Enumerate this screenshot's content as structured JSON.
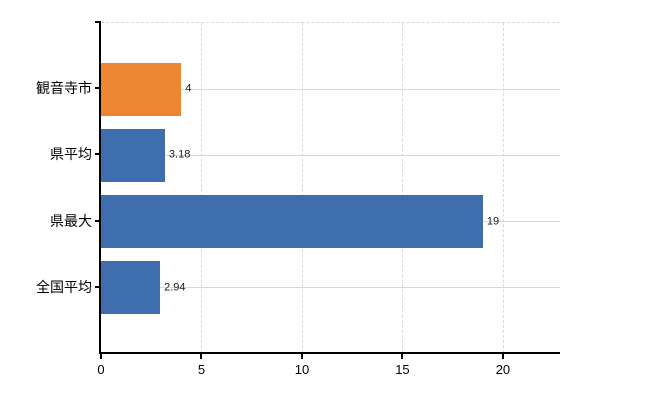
{
  "chart_data": {
    "type": "bar",
    "orientation": "horizontal",
    "title": "",
    "xlabel": "",
    "ylabel": "",
    "categories": [
      "観音寺市",
      "県平均",
      "県最大",
      "全国平均"
    ],
    "values": [
      4,
      3.18,
      19,
      2.94
    ],
    "value_labels": [
      "4",
      "3.18",
      "19",
      "2.94"
    ],
    "bar_colors": [
      "#ED8633",
      "#3E6EAE",
      "#3E6EAE",
      "#3E6EAE"
    ],
    "highlight_color": "#ED8633",
    "base_color": "#3E6EAE",
    "x_ticks": [
      "0",
      "5",
      "10",
      "15",
      "20"
    ],
    "x_tick_values": [
      0,
      5,
      10,
      15,
      20
    ],
    "xlim": [
      0,
      22.84
    ],
    "grid": {
      "vertical_style": "dashed",
      "horizontal_style": "solid",
      "top_border_style": "dashed",
      "color": "#D9D9D9"
    },
    "axis_color": "#000000",
    "label_color": "#000000",
    "legend": null
  }
}
